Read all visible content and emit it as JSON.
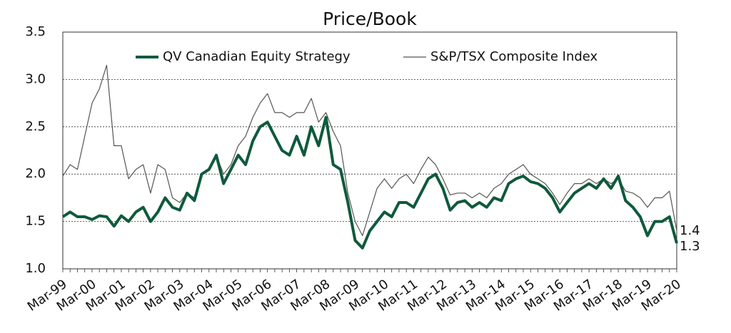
{
  "chart_data": {
    "type": "line",
    "title": "Price/Book",
    "categories": [
      "Mar-99",
      null,
      null,
      null,
      "Mar-00",
      null,
      null,
      null,
      "Mar-01",
      null,
      null,
      null,
      "Mar-02",
      null,
      null,
      null,
      "Mar-03",
      null,
      null,
      null,
      "Mar-04",
      null,
      null,
      null,
      "Mar-05",
      null,
      null,
      null,
      "Mar-06",
      null,
      null,
      null,
      "Mar-07",
      null,
      null,
      null,
      "Mar-08",
      null,
      null,
      null,
      "Mar-09",
      null,
      null,
      null,
      "Mar-10",
      null,
      null,
      null,
      "Mar-11",
      null,
      null,
      null,
      "Mar-12",
      null,
      null,
      null,
      "Mar-13",
      null,
      null,
      null,
      "Mar-14",
      null,
      null,
      null,
      "Mar-15",
      null,
      null,
      null,
      "Mar-16",
      null,
      null,
      null,
      "Mar-17",
      null,
      null,
      null,
      "Mar-18",
      null,
      null,
      null,
      "Mar-19",
      null,
      null,
      null,
      "Mar-20"
    ],
    "series": [
      {
        "name": "QV Canadian Equity Strategy",
        "color": "#0e5a3c",
        "width": 4,
        "values": [
          1.55,
          1.6,
          1.55,
          1.55,
          1.52,
          1.56,
          1.55,
          1.45,
          1.56,
          1.5,
          1.6,
          1.65,
          1.5,
          1.6,
          1.75,
          1.65,
          1.62,
          1.8,
          1.72,
          2.0,
          2.05,
          2.2,
          1.9,
          2.05,
          2.2,
          2.1,
          2.35,
          2.5,
          2.55,
          2.4,
          2.25,
          2.2,
          2.4,
          2.2,
          2.5,
          2.3,
          2.6,
          2.1,
          2.05,
          1.7,
          1.3,
          1.22,
          1.4,
          1.5,
          1.6,
          1.55,
          1.7,
          1.7,
          1.65,
          1.8,
          1.95,
          2.0,
          1.85,
          1.62,
          1.7,
          1.72,
          1.65,
          1.7,
          1.65,
          1.75,
          1.72,
          1.9,
          1.95,
          1.98,
          1.92,
          1.9,
          1.85,
          1.75,
          1.6,
          1.7,
          1.8,
          1.85,
          1.9,
          1.85,
          1.95,
          1.85,
          1.98,
          1.72,
          1.65,
          1.55,
          1.35,
          1.5,
          1.5,
          1.55,
          1.27
        ]
      },
      {
        "name": "S&P/TSX Composite Index",
        "color": "#555555",
        "width": 1.2,
        "values": [
          1.98,
          2.1,
          2.05,
          2.4,
          2.75,
          2.9,
          3.15,
          2.3,
          2.3,
          1.95,
          2.05,
          2.1,
          1.8,
          2.1,
          2.05,
          1.75,
          1.7,
          1.8,
          1.75,
          2.0,
          2.05,
          2.2,
          2.0,
          2.1,
          2.3,
          2.4,
          2.6,
          2.75,
          2.85,
          2.65,
          2.65,
          2.6,
          2.65,
          2.65,
          2.8,
          2.55,
          2.65,
          2.45,
          2.3,
          1.8,
          1.5,
          1.35,
          1.6,
          1.85,
          1.95,
          1.85,
          1.95,
          2.0,
          1.9,
          2.05,
          2.18,
          2.1,
          1.95,
          1.78,
          1.8,
          1.8,
          1.75,
          1.8,
          1.75,
          1.85,
          1.9,
          2.0,
          2.05,
          2.1,
          2.0,
          1.95,
          1.9,
          1.8,
          1.68,
          1.8,
          1.9,
          1.9,
          1.95,
          1.9,
          1.95,
          1.9,
          1.95,
          1.82,
          1.8,
          1.75,
          1.65,
          1.75,
          1.75,
          1.82,
          1.4
        ]
      }
    ],
    "annotations": [
      {
        "text": "1.4",
        "series": 1
      },
      {
        "text": "1.3",
        "series": 0
      }
    ],
    "ylim": [
      1.0,
      3.5
    ],
    "yticks": [
      {
        "value": 1.0,
        "label": "1.0"
      },
      1.5,
      {
        "value": 2.0,
        "label": "2.0"
      },
      2.5,
      {
        "value": 3.0,
        "label": "3.0"
      },
      3.5
    ],
    "grid": true,
    "legend": "top"
  }
}
